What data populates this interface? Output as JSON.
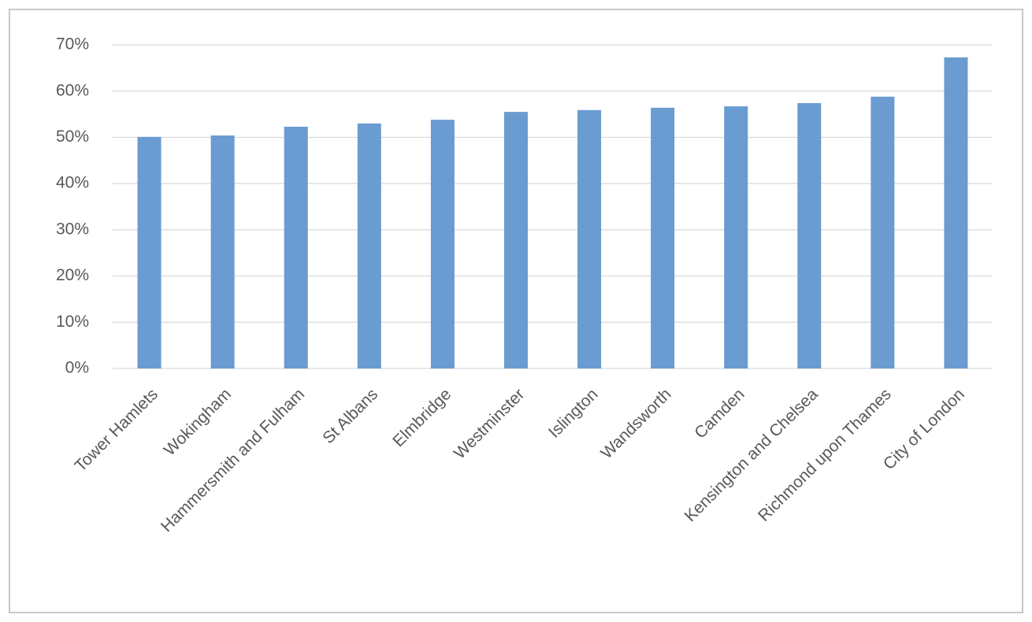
{
  "chart_data": {
    "type": "bar",
    "categories": [
      "Tower Hamlets",
      "Wokingham",
      "Hammersmith and Fulham",
      "St Albans",
      "Elmbridge",
      "Westminster",
      "Islington",
      "Wandsworth",
      "Camden",
      "Kensington and Chelsea",
      "Richmond upon Thames",
      "City of London"
    ],
    "values": [
      50.1,
      50.4,
      52.3,
      53.0,
      53.8,
      55.5,
      55.9,
      56.4,
      56.7,
      57.4,
      58.8,
      67.3
    ],
    "color": "#6a9bd1",
    "ylim": [
      0,
      70
    ],
    "yticks": [
      {
        "value": 0,
        "label": "0%"
      },
      {
        "value": 10,
        "label": "10%"
      },
      {
        "value": 20,
        "label": "20%"
      },
      {
        "value": 30,
        "label": "30%"
      },
      {
        "value": 40,
        "label": "40%"
      },
      {
        "value": 50,
        "label": "50%"
      },
      {
        "value": 60,
        "label": "60%"
      },
      {
        "value": 70,
        "label": "70%"
      }
    ],
    "grid": true
  }
}
